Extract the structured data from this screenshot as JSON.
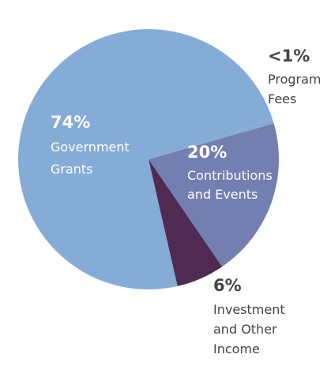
{
  "chart_data": {
    "type": "pie",
    "legend": "none",
    "slices": [
      {
        "percent_label": "74%",
        "label_lines": [
          "Government",
          "Grants"
        ],
        "value": 74,
        "color": "#85acd6",
        "label_color": "#ffffff",
        "placement": "inside"
      },
      {
        "percent_label": "20%",
        "label_lines": [
          "Contributions",
          "and Events"
        ],
        "value": 20,
        "color": "#737fb0",
        "label_color": "#ffffff",
        "placement": "inside"
      },
      {
        "percent_label": "6%",
        "label_lines": [
          "Investment",
          "and Other",
          "Income"
        ],
        "value": 6,
        "color": "#4f2b53",
        "label_color": "#444444",
        "placement": "outside"
      },
      {
        "percent_label": "<1%",
        "label_lines": [
          "Program",
          "Fees"
        ],
        "value": 0.5,
        "color": "#85acd6",
        "label_color": "#444444",
        "placement": "outside"
      }
    ]
  }
}
